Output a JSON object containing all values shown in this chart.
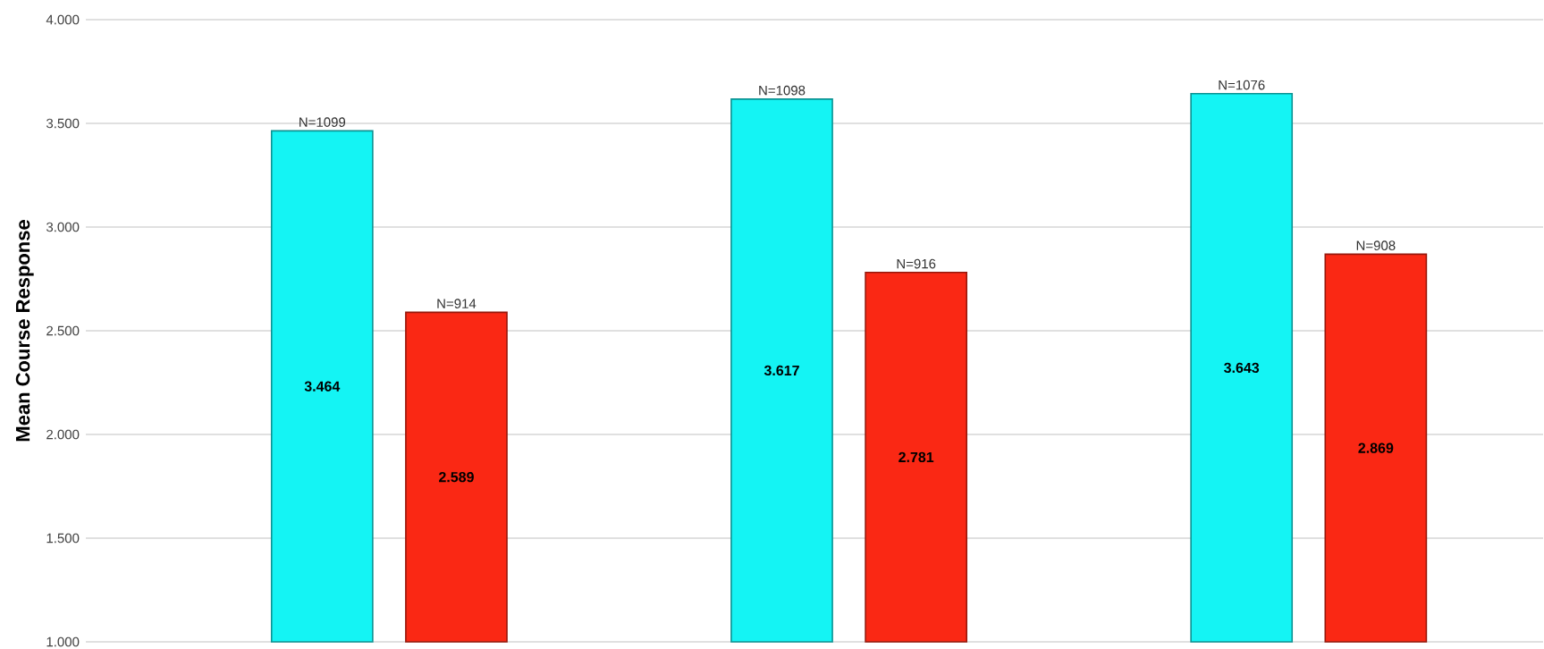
{
  "chart_data": {
    "type": "bar",
    "ylabel": "Mean Course Response",
    "categories": [
      null,
      null,
      null
    ],
    "series": [
      {
        "color": "#14f4f4",
        "values": [
          3.464,
          3.617,
          3.643
        ]
      },
      {
        "color": "#fa2814",
        "values": [
          2.589,
          2.781,
          2.869
        ]
      }
    ],
    "ylim": [
      1,
      4
    ],
    "yticks": [
      {
        "value": 1,
        "label": "1.000"
      },
      {
        "value": 1.5,
        "label": "1.500"
      },
      {
        "value": 2,
        "label": "2.000"
      },
      {
        "value": 2.5,
        "label": "2.500"
      },
      {
        "value": 3,
        "label": "3.000"
      },
      {
        "value": 3.5,
        "label": "3.500"
      },
      {
        "value": 4,
        "label": "4.000"
      }
    ],
    "grid": "y",
    "data_labels": true,
    "annotations": [
      {
        "text": "N=1099",
        "y": 3.464
      },
      {
        "text": "N=914",
        "y": 2.589
      },
      {
        "text": "N=1098",
        "y": 3.617
      },
      {
        "text": "N=916",
        "y": 2.781
      },
      {
        "text": "N=1076",
        "y": 3.643
      },
      {
        "text": "N=908",
        "y": 2.869
      }
    ]
  }
}
